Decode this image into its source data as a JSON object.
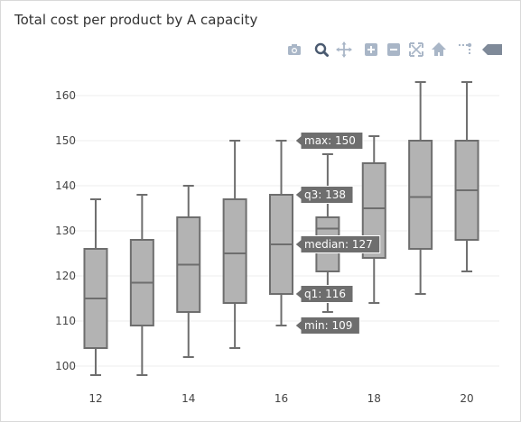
{
  "title": "Total cost per product by A capacity",
  "modebar": {
    "icons": [
      "camera-icon",
      "zoom-icon",
      "pan-icon",
      "zoom-in-icon",
      "zoom-out-icon",
      "autoscale-icon",
      "reset-axes-icon",
      "spike-lines-icon",
      "plotly-logo-icon"
    ]
  },
  "colors": {
    "box_fill": "#b3b3b3",
    "box_line": "#6e6e6e",
    "grid": "#eeeeee",
    "hover_bg": "#6e6e6e",
    "modebar_icon": "#a9b6c7"
  },
  "chart_data": {
    "type": "box",
    "title": "Total cost per product by A capacity",
    "xlabel": "",
    "ylabel": "",
    "x_ticks": [
      12,
      14,
      16,
      18,
      20
    ],
    "y_ticks": [
      100,
      110,
      120,
      130,
      140,
      150,
      160
    ],
    "xlim": [
      11.3,
      20.7
    ],
    "ylim": [
      95.2,
      165.6
    ],
    "grid": true,
    "boxes": [
      {
        "x": 12,
        "min": 98,
        "q1": 104,
        "median": 115,
        "q3": 126,
        "max": 137
      },
      {
        "x": 13,
        "min": 98,
        "q1": 109,
        "median": 118.5,
        "q3": 128,
        "max": 138
      },
      {
        "x": 14,
        "min": 102,
        "q1": 112,
        "median": 122.5,
        "q3": 133,
        "max": 140
      },
      {
        "x": 15,
        "min": 104,
        "q1": 114,
        "median": 125,
        "q3": 137,
        "max": 150
      },
      {
        "x": 16,
        "min": 109,
        "q1": 116,
        "median": 127,
        "q3": 138,
        "max": 150
      },
      {
        "x": 17,
        "min": 112,
        "q1": 121,
        "median": 130.5,
        "q3": 133,
        "max": 147
      },
      {
        "x": 18,
        "min": 114,
        "q1": 124,
        "median": 135,
        "q3": 145,
        "max": 151
      },
      {
        "x": 19,
        "min": 116,
        "q1": 126,
        "median": 137.5,
        "q3": 150,
        "max": 163
      },
      {
        "x": 20,
        "min": 121,
        "q1": 128,
        "median": 139,
        "q3": 150,
        "max": 163
      }
    ],
    "hover": {
      "x": 16,
      "labels": [
        "max: 150",
        "q3: 138",
        "median: 127",
        "q1: 116",
        "min: 109"
      ],
      "values": [
        150,
        138,
        127,
        116,
        109
      ]
    }
  }
}
